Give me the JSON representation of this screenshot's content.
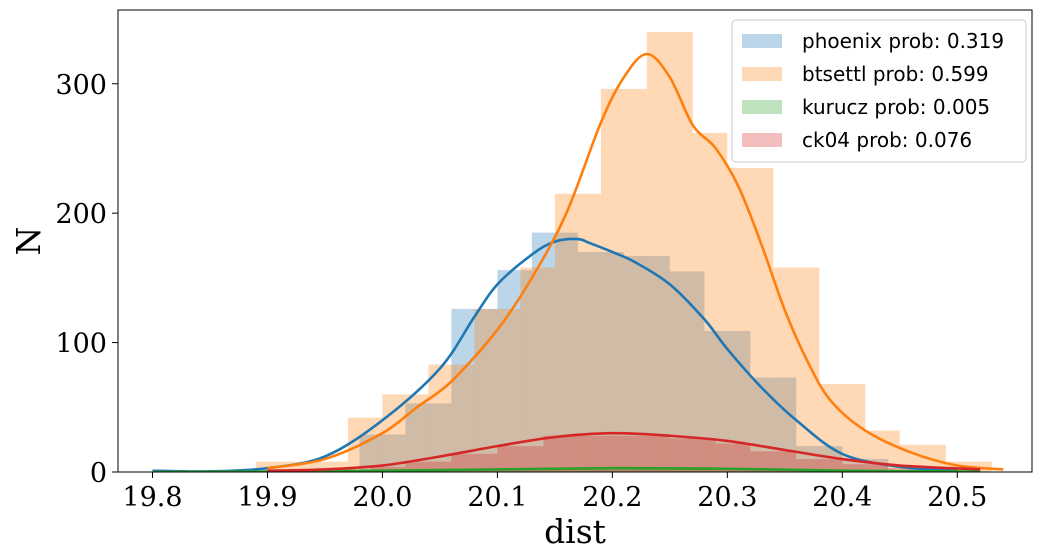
{
  "chart_data": {
    "type": "bar",
    "xlabel": "dist",
    "ylabel": "N",
    "xlim": [
      19.77,
      20.565
    ],
    "ylim": [
      0,
      357
    ],
    "xticks": [
      19.8,
      19.9,
      20.0,
      20.1,
      20.2,
      20.3,
      20.4,
      20.5
    ],
    "xtick_labels": [
      "19.8",
      "19.9",
      "20.0",
      "20.1",
      "20.2",
      "20.3",
      "20.4",
      "20.5"
    ],
    "yticks": [
      0,
      100,
      200,
      300
    ],
    "ytick_labels": [
      "0",
      "100",
      "200",
      "300"
    ],
    "grid": false,
    "legend_position": "top-right",
    "series": [
      {
        "name": "phoenix prob: 0.319",
        "color": "#1f77b4",
        "hist_alpha": 0.3,
        "bins": [
          [
            19.98,
            20.02,
            29
          ],
          [
            20.02,
            20.06,
            53
          ],
          [
            20.06,
            20.1,
            126
          ],
          [
            20.1,
            20.13,
            156
          ],
          [
            20.13,
            20.17,
            185
          ],
          [
            20.17,
            20.21,
            170
          ],
          [
            20.21,
            20.25,
            167
          ],
          [
            20.25,
            20.28,
            155
          ],
          [
            20.28,
            20.32,
            109
          ],
          [
            20.32,
            20.36,
            73
          ],
          [
            20.36,
            20.4,
            20
          ],
          [
            20.4,
            20.44,
            10
          ]
        ],
        "kde_x": [
          19.8,
          19.85,
          19.9,
          19.95,
          20.0,
          20.05,
          20.08,
          20.1,
          20.13,
          20.15,
          20.17,
          20.18,
          20.2,
          20.22,
          20.25,
          20.28,
          20.3,
          20.33,
          20.36,
          20.4,
          20.45,
          20.5
        ],
        "kde_y": [
          1,
          0.5,
          3,
          12,
          40,
          80,
          120,
          145,
          168,
          178,
          180,
          177,
          170,
          162,
          145,
          118,
          95,
          65,
          40,
          14,
          4,
          1
        ]
      },
      {
        "name": "btsettl prob: 0.599",
        "color": "#ff7f0e",
        "hist_alpha": 0.3,
        "bins": [
          [
            19.89,
            19.93,
            8
          ],
          [
            19.93,
            19.97,
            8
          ],
          [
            19.97,
            20.0,
            42
          ],
          [
            20.0,
            20.04,
            60
          ],
          [
            20.04,
            20.08,
            83
          ],
          [
            20.08,
            20.12,
            126
          ],
          [
            20.12,
            20.15,
            158
          ],
          [
            20.15,
            20.19,
            215
          ],
          [
            20.19,
            20.23,
            296
          ],
          [
            20.23,
            20.27,
            340
          ],
          [
            20.27,
            20.3,
            262
          ],
          [
            20.3,
            20.34,
            235
          ],
          [
            20.34,
            20.38,
            158
          ],
          [
            20.38,
            20.42,
            68
          ],
          [
            20.42,
            20.45,
            32
          ],
          [
            20.45,
            20.49,
            21
          ],
          [
            20.49,
            20.53,
            8
          ]
        ],
        "kde_x": [
          19.9,
          19.95,
          20.0,
          20.03,
          20.06,
          20.1,
          20.13,
          20.16,
          20.19,
          20.21,
          20.23,
          20.25,
          20.27,
          20.29,
          20.31,
          20.33,
          20.35,
          20.37,
          20.39,
          20.42,
          20.46,
          20.5,
          20.54
        ],
        "kde_y": [
          3,
          10,
          30,
          50,
          70,
          110,
          150,
          200,
          270,
          305,
          323,
          305,
          268,
          250,
          220,
          175,
          125,
          85,
          55,
          32,
          15,
          5,
          2
        ]
      },
      {
        "name": "kurucz prob: 0.005",
        "color": "#2ca02c",
        "hist_alpha": 0.3,
        "bins": [
          [
            20.0,
            20.1,
            2
          ],
          [
            20.1,
            20.2,
            3
          ],
          [
            20.2,
            20.3,
            3
          ],
          [
            20.3,
            20.4,
            2
          ]
        ],
        "kde_x": [
          19.8,
          19.9,
          20.0,
          20.1,
          20.2,
          20.3,
          20.4,
          20.52
        ],
        "kde_y": [
          0,
          0.3,
          1,
          2,
          3,
          2.5,
          1,
          0.3
        ]
      },
      {
        "name": "ck04 prob: 0.076",
        "color": "#d62728",
        "hist_alpha": 0.3,
        "bins": [
          [
            19.99,
            20.02,
            4
          ],
          [
            20.02,
            20.06,
            8
          ],
          [
            20.06,
            20.1,
            14
          ],
          [
            20.1,
            20.14,
            20
          ],
          [
            20.14,
            20.17,
            28
          ],
          [
            20.17,
            20.21,
            28
          ],
          [
            20.21,
            20.25,
            28
          ],
          [
            20.25,
            20.29,
            26
          ],
          [
            20.29,
            20.32,
            22
          ],
          [
            20.32,
            20.36,
            16
          ],
          [
            20.36,
            20.4,
            10
          ],
          [
            20.4,
            20.44,
            6
          ],
          [
            20.44,
            20.48,
            3
          ]
        ],
        "kde_x": [
          19.9,
          19.95,
          20.0,
          20.05,
          20.1,
          20.15,
          20.2,
          20.25,
          20.3,
          20.35,
          20.4,
          20.45,
          20.52
        ],
        "kde_y": [
          1,
          2,
          5,
          12,
          20,
          27,
          30,
          28,
          24,
          17,
          10,
          5,
          2
        ]
      }
    ]
  }
}
